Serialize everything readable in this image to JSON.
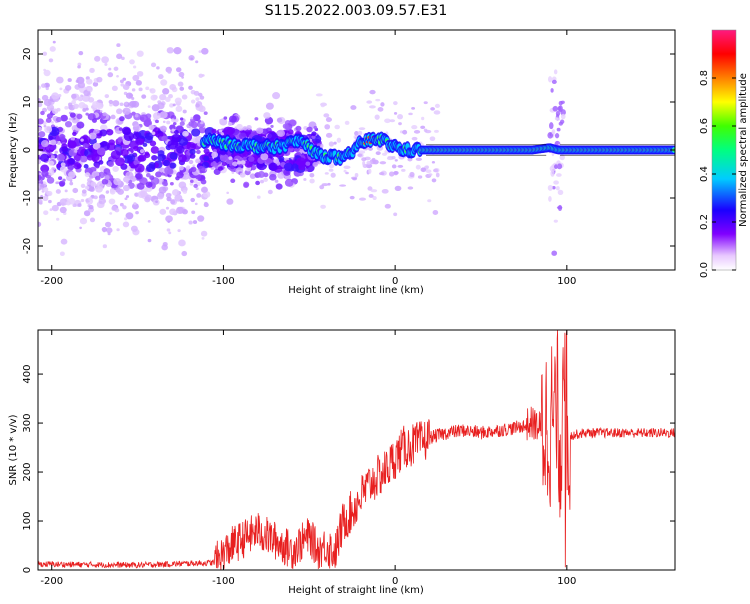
{
  "title": "S115.2022.003.09.57.E31",
  "chart_data": [
    {
      "type": "heatmap",
      "xlabel": "Height of straight line (km)",
      "ylabel": "Frequency (Hz)",
      "xlim": [
        -208,
        163
      ],
      "ylim": [
        -25,
        25
      ],
      "xticks": [
        -200,
        -100,
        0,
        100
      ],
      "xtick_labels": [
        "-200",
        "-100",
        "0",
        "100"
      ],
      "yticks": [
        -20,
        -10,
        0,
        10,
        20
      ],
      "ytick_labels": [
        "-20",
        "-10",
        "0",
        "10",
        "20"
      ],
      "colorbar": {
        "label": "Normalized spectral amplitude",
        "range": [
          0,
          1
        ],
        "ticks": [
          0.0,
          0.2,
          0.4,
          0.6,
          0.8
        ],
        "tick_labels": [
          "0.0",
          "0.2",
          "0.4",
          "0.6",
          "0.8"
        ],
        "colormap": [
          "#ffffff",
          "#8000ff",
          "#0000ff",
          "#00ffff",
          "#00ff00",
          "#ffff00",
          "#ff8000",
          "#ff0000",
          "#ff1a80"
        ]
      },
      "ridge": {
        "description_points_x": [
          -110,
          -90,
          -70,
          -55,
          -45,
          -35,
          -30,
          -20,
          -10,
          -2,
          5,
          15,
          40,
          80,
          90,
          95,
          100,
          163
        ],
        "description_points_y": [
          2,
          1,
          0.5,
          2,
          -1,
          -1.5,
          -2,
          1.5,
          2.5,
          1,
          0,
          0,
          0,
          0,
          0.5,
          0,
          0,
          0
        ]
      }
    },
    {
      "type": "line",
      "xlabel": "Height of straight line (km)",
      "ylabel": "SNR (10 * v/v)",
      "xlim": [
        -208,
        163
      ],
      "ylim": [
        0,
        490
      ],
      "xticks": [
        -200,
        -100,
        0,
        100
      ],
      "xtick_labels": [
        "-200",
        "-100",
        "0",
        "100"
      ],
      "yticks": [
        0,
        100,
        200,
        300,
        400
      ],
      "ytick_labels": [
        "0",
        "100",
        "200",
        "300",
        "400"
      ],
      "color": "#e82020",
      "envelope_x": [
        -208,
        -150,
        -105,
        -95,
        -80,
        -70,
        -60,
        -50,
        -45,
        -40,
        -35,
        -30,
        -25,
        -20,
        -15,
        -10,
        -5,
        0,
        5,
        10,
        15,
        20,
        30,
        40,
        50,
        60,
        70,
        80,
        85,
        90,
        93,
        96,
        98,
        100,
        103,
        110,
        130,
        163
      ],
      "envelope_y": [
        12,
        10,
        15,
        50,
        80,
        60,
        40,
        70,
        40,
        50,
        35,
        100,
        120,
        150,
        175,
        190,
        205,
        230,
        250,
        255,
        260,
        270,
        280,
        285,
        280,
        285,
        290,
        300,
        290,
        300,
        320,
        280,
        280,
        270,
        275,
        280,
        280,
        280
      ]
    }
  ]
}
